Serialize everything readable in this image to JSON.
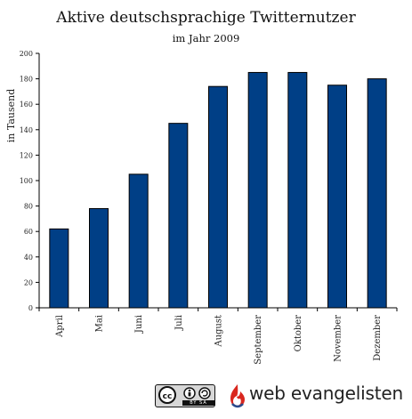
{
  "chart_data": {
    "type": "bar",
    "title": "Aktive deutschsprachige Twitternutzer",
    "subtitle": "im Jahr 2009",
    "xlabel": "",
    "ylabel": "in Tausend",
    "categories": [
      "April",
      "Mai",
      "Juni",
      "Juli",
      "August",
      "September",
      "Oktober",
      "November",
      "Dezember"
    ],
    "values": [
      62,
      78,
      105,
      145,
      174,
      185,
      185,
      175,
      180
    ],
    "ylim": [
      0,
      200
    ],
    "yticks": [
      "0",
      "20",
      "40",
      "60",
      "80",
      "100",
      "120",
      "140",
      "160",
      "180",
      "200"
    ],
    "grid": false,
    "legend": "none",
    "bar_color": "#003f86",
    "bar_edge_color": "#000000"
  },
  "footer": {
    "license_icon": "cc-by-sa-icon",
    "license_label": "BY SA",
    "brand_icon": "flame-logo-icon",
    "brand_name": "web evangelisten",
    "brand_color": "#d9271e"
  }
}
